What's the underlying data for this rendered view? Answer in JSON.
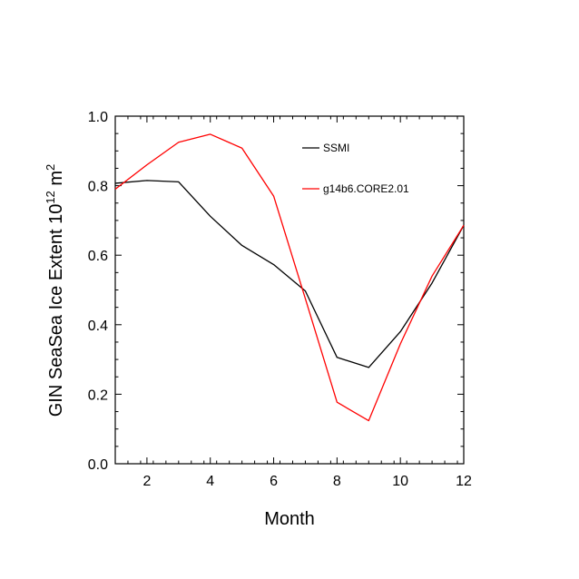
{
  "chart_data": {
    "type": "line",
    "xlabel": "Month",
    "ylabel": {
      "text": "GIN SeaSea Ice Extent 10",
      "exp1": "12",
      "unit": " m",
      "exp2": "2"
    },
    "xlim": [
      1,
      12
    ],
    "ylim": [
      0,
      1
    ],
    "x_ticks": [
      2,
      4,
      6,
      8,
      10,
      12
    ],
    "x_tick_labels": [
      "2",
      "4",
      "6",
      "8",
      "10",
      "12"
    ],
    "y_ticks": [
      0,
      0.2,
      0.4,
      0.6,
      0.8,
      1.0
    ],
    "y_tick_labels": [
      "0.0",
      "0.2",
      "0.4",
      "0.6",
      "0.8",
      "1.0"
    ],
    "x": [
      1,
      2,
      3,
      4,
      5,
      6,
      7,
      8,
      9,
      10,
      11,
      12
    ],
    "series": [
      {
        "name": "SSMI",
        "color": "#000000",
        "values": [
          0.807,
          0.815,
          0.811,
          0.712,
          0.628,
          0.573,
          0.497,
          0.306,
          0.277,
          0.38,
          0.52,
          0.686
        ]
      },
      {
        "name": "g14b6.CORE2.01",
        "color": "#ff0000",
        "values": [
          0.79,
          0.86,
          0.925,
          0.948,
          0.908,
          0.77,
          0.475,
          0.177,
          0.124,
          0.345,
          0.54,
          0.686
        ]
      }
    ],
    "legend": "top-right",
    "grid": false
  }
}
